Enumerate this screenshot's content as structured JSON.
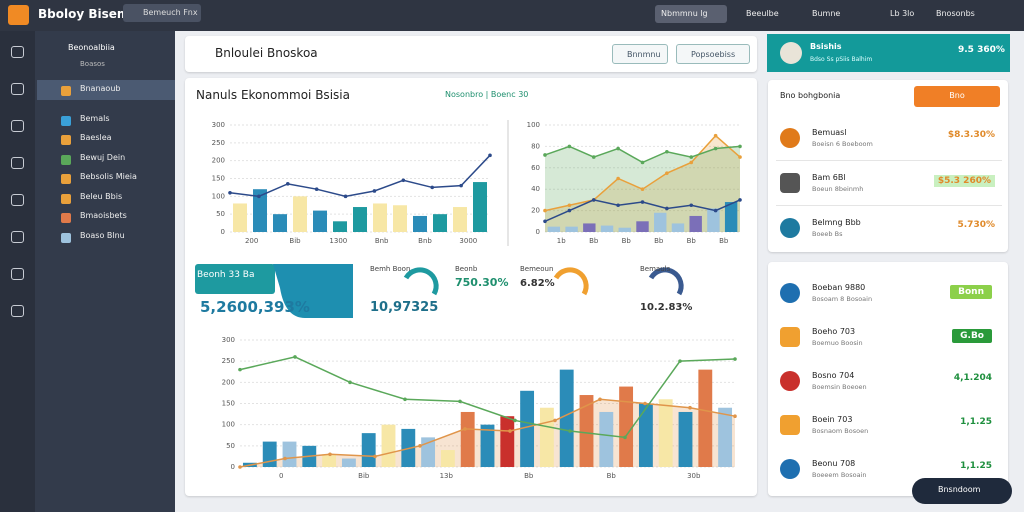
{
  "app": {
    "title": "Bboloy Bisemi",
    "search": "Bemeuch Fnx",
    "top_actions": [
      "Nbmmnu lg",
      "Beeulbe",
      "Bumne",
      "Lb 3lo",
      "Bnosonbs"
    ]
  },
  "nav": {
    "title": "Beonoalbiia",
    "subtitle": "Boasos",
    "items": [
      "Bnanaoub",
      "Bemals",
      "Baeslea",
      "Bewuj Dein",
      "Bebsolis Mieia",
      "Beleu Bbis",
      "Bmaoisbets",
      "Boaso Blnu"
    ]
  },
  "header": {
    "title": "Bnloulei Bnoskoa",
    "buttons": [
      "Bnnmnu",
      "Popsoebiss"
    ]
  },
  "dashboard": {
    "title": "Nanuls Ekonommoi Bsisia",
    "legend": "Nosonbro | Boenc 30",
    "chart_a": {
      "ylim": [
        0,
        300
      ],
      "yticks": [
        0,
        50,
        100,
        150,
        200,
        250,
        300
      ],
      "xlabels": [
        "200",
        "Bib",
        "1300",
        "Bnb",
        "Bnb",
        "3000"
      ],
      "bars": {
        "values": [
          80,
          120,
          50,
          100,
          60,
          30,
          70,
          80,
          75,
          45,
          50,
          70,
          140
        ],
        "colors": [
          "#f7e7a6",
          "#2b8cb8",
          "#2b8cb8",
          "#f7e7a6",
          "#2b8cb8",
          "#1e9aa0",
          "#1e9aa0",
          "#f7e7a6",
          "#f7e7a6",
          "#2b8cb8",
          "#1e9aa0",
          "#f7e7a6",
          "#1e9aa0"
        ]
      },
      "lines": [
        {
          "color": "#2c4a8a",
          "area": false,
          "values": [
            110,
            100,
            135,
            120,
            100,
            115,
            145,
            125,
            130,
            215
          ]
        }
      ]
    },
    "chart_b": {
      "ylim": [
        0,
        100
      ],
      "yticks": [
        0,
        20,
        40,
        60,
        80,
        100
      ],
      "xlabels": [
        "1b",
        "Bb",
        "Bb",
        "Bb",
        "Bb",
        "Bb"
      ],
      "bars": {
        "values": [
          5,
          5,
          8,
          6,
          4,
          10,
          18,
          8,
          15,
          22,
          28
        ],
        "colors": [
          "#9ec3de",
          "#9ec3de",
          "#7b6fb8",
          "#9ec3de",
          "#9ec3de",
          "#7b6fb8",
          "#9ec3de",
          "#9ec3de",
          "#7b6fb8",
          "#9ec3de",
          "#2b8cb8"
        ]
      },
      "lines": [
        {
          "color": "#e9a03b",
          "area": true,
          "values": [
            20,
            25,
            30,
            50,
            40,
            55,
            65,
            90,
            70
          ]
        },
        {
          "color": "#5aa85a",
          "area": true,
          "values": [
            72,
            80,
            70,
            78,
            65,
            75,
            70,
            78,
            80
          ]
        },
        {
          "color": "#2c4a8a",
          "area": false,
          "values": [
            10,
            20,
            30,
            25,
            28,
            22,
            25,
            20,
            30
          ]
        }
      ]
    },
    "kpis": [
      {
        "label": "Beonh 33 Ba",
        "value": "5,2600,393%"
      },
      {
        "label": "Bemh Boon",
        "value": "10,97325"
      },
      {
        "label": "Beonb",
        "value": "750.30%"
      },
      {
        "label": "Bemeoun",
        "value": "6.82%"
      },
      {
        "label": "Bemauls",
        "value": "10.2.83%"
      }
    ],
    "chart_c": {
      "ylim": [
        0,
        300
      ],
      "yticks": [
        0,
        50,
        100,
        150,
        200,
        250,
        300
      ],
      "xlabels": [
        "0",
        "Bib",
        "13b",
        "Bb",
        "Bb",
        "30b"
      ],
      "bars": {
        "values": [
          10,
          60,
          60,
          50,
          30,
          20,
          80,
          100,
          90,
          70,
          40,
          130,
          100,
          120,
          180,
          140,
          230,
          170,
          130,
          190,
          150,
          160,
          130,
          230,
          140
        ],
        "colors": [
          "#2b8cb8",
          "#2b8cb8",
          "#9ec3de",
          "#2b8cb8",
          "#f7e7a6",
          "#9ec3de",
          "#2b8cb8",
          "#f7e7a6",
          "#2b8cb8",
          "#9ec3de",
          "#f7e7a6",
          "#e07a4a",
          "#2b8cb8",
          "#c9302c",
          "#2b8cb8",
          "#f7e7a6",
          "#2b8cb8",
          "#e07a4a",
          "#9ec3de",
          "#e07a4a",
          "#2b8cb8",
          "#f7e7a6",
          "#2b8cb8",
          "#e07a4a",
          "#9ec3de"
        ]
      },
      "lines": [
        {
          "color": "#e0954a",
          "area": true,
          "values": [
            0,
            20,
            30,
            25,
            50,
            90,
            85,
            110,
            160,
            150,
            140,
            120
          ]
        },
        {
          "color": "#5aa85a",
          "area": false,
          "values": [
            230,
            260,
            200,
            160,
            155,
            110,
            85,
            70,
            250,
            255
          ]
        }
      ]
    }
  },
  "summary": {
    "title": "Bsishis",
    "subtitle": "Bdso Ss pSiis Balhim",
    "value": "9.5 360%"
  },
  "tabs": {
    "tab": "Bno bohgbonia",
    "button": "Bno"
  },
  "list_a": [
    {
      "name": "Bemuasl",
      "sub": "Boeisn 6 Boeboom",
      "value": "$8.3.30%"
    },
    {
      "name": "Bam 6Bl",
      "sub": "Boeun 8beinmh",
      "value": "$5.3 260%"
    },
    {
      "name": "Belmng Bbb",
      "sub": "Boeeb Bs",
      "value": "5.730%"
    }
  ],
  "list_b": [
    {
      "name": "Boeban 9880",
      "sub": "Bosoam 8 Bosoain",
      "value": "Bonn"
    },
    {
      "name": "Boeho 703",
      "sub": "Boemuo Boosin",
      "value": "G.Bo"
    },
    {
      "name": "Bosno 704",
      "sub": "Boemsin Boeoen",
      "value": "4,1.204"
    },
    {
      "name": "Boein 703",
      "sub": "Bosnaom Bosoen",
      "value": "1,1.25"
    },
    {
      "name": "Beonu 708",
      "sub": "Boeeem Bosoain",
      "value": "1,1.25"
    }
  ],
  "chat": "Bnsndoom"
}
